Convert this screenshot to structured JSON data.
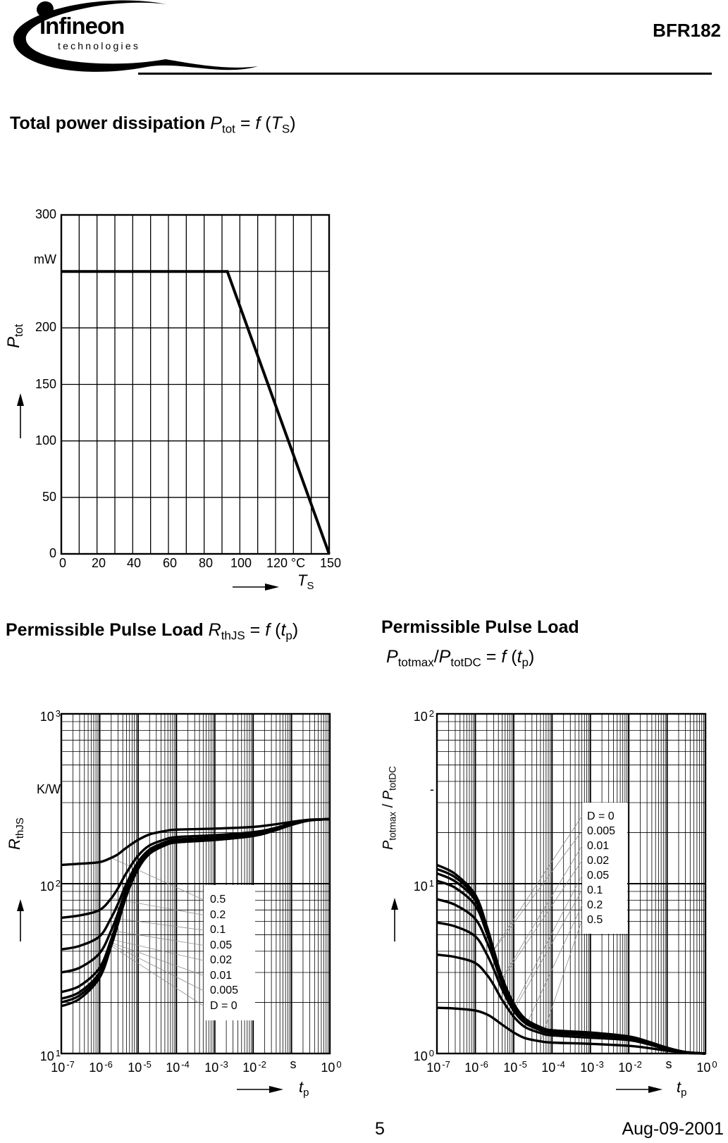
{
  "header": {
    "brand": "Infineon",
    "brand_sub": "technologies",
    "product": "BFR182"
  },
  "footer": {
    "page": "5",
    "date": "Aug-09-2001"
  },
  "headings": {
    "total_power": [
      {
        "t": "Total power dissipation ",
        "b": true
      },
      {
        "t": "P",
        "i": true
      },
      {
        "t": "tot",
        "sub": true
      },
      {
        "t": " = "
      },
      {
        "t": "f",
        "i": true
      },
      {
        "t": " ("
      },
      {
        "t": "T",
        "i": true
      },
      {
        "t": "S",
        "sub": true
      },
      {
        "t": ")"
      }
    ],
    "pulse_left": [
      {
        "t": "Permissible Pulse Load ",
        "b": true
      },
      {
        "t": "R",
        "i": true
      },
      {
        "t": "thJS",
        "sub": true
      },
      {
        "t": " = "
      },
      {
        "t": "f",
        "i": true
      },
      {
        "t": " ("
      },
      {
        "t": "t",
        "i": true
      },
      {
        "t": "p",
        "sub": true
      },
      {
        "t": ")"
      }
    ],
    "pulse_right_line1": [
      {
        "t": "Permissible Pulse Load",
        "b": true
      }
    ],
    "pulse_right_line2": [
      {
        "t": "P",
        "i": true
      },
      {
        "t": "totmax",
        "sub": true
      },
      {
        "t": "/"
      },
      {
        "t": "P",
        "i": true
      },
      {
        "t": "totDC",
        "sub": true
      },
      {
        "t": " = "
      },
      {
        "t": "f",
        "i": true
      },
      {
        "t": " ("
      },
      {
        "t": "t",
        "i": true
      },
      {
        "t": "p",
        "sub": true
      },
      {
        "t": ")"
      }
    ]
  },
  "chart_data": [
    {
      "type": "line",
      "title": "Total power dissipation Ptot = f (TS)",
      "xlabel": "TS",
      "ylabel": "Ptot",
      "x_unit": "°C",
      "y_unit": "mW",
      "xlim": [
        0,
        150
      ],
      "ylim": [
        0,
        300
      ],
      "x_grid_step": 10,
      "y_grid_step": 50,
      "grid": true,
      "x_ticks": [
        {
          "base": "0",
          "value": 0
        },
        {
          "base": "20",
          "value": 20
        },
        {
          "base": "40",
          "value": 40
        },
        {
          "base": "60",
          "value": 60
        },
        {
          "base": "80",
          "value": 80
        },
        {
          "base": "100",
          "value": 100
        },
        {
          "base": "120",
          "value": 120
        },
        {
          "base": "°C",
          "value": 132
        },
        {
          "base": "150",
          "value": 150
        }
      ],
      "y_ticks": [
        {
          "base": "300",
          "value": 300
        },
        {
          "base": "mW",
          "value": 260
        },
        {
          "base": "200",
          "value": 200
        },
        {
          "base": "150",
          "value": 150
        },
        {
          "base": "100",
          "value": 100
        },
        {
          "base": "50",
          "value": 50
        },
        {
          "base": "0",
          "value": 0
        }
      ],
      "ylabel_rich": [
        {
          "t": "P",
          "i": true
        },
        {
          "t": "tot",
          "sub": true
        }
      ],
      "xlabel_rich": [
        {
          "t": "T",
          "i": true
        },
        {
          "t": "S",
          "sub": true
        }
      ],
      "series": [
        {
          "name": "Ptot derating",
          "points": [
            [
              0,
              250
            ],
            [
              93,
              250
            ],
            [
              150,
              0
            ]
          ]
        }
      ]
    },
    {
      "type": "line",
      "title": "Permissible Pulse Load RthJS = f (tp)",
      "xlabel": "tp",
      "ylabel": "RthJS",
      "x_unit": "s",
      "y_unit": "K/W",
      "x_scale": "log",
      "y_scale": "log",
      "xlim": [
        1e-07,
        1
      ],
      "ylim": [
        10,
        1000
      ],
      "grid": true,
      "x_ticks": [
        {
          "base": "10",
          "exp": "-7",
          "log": -7
        },
        {
          "base": "10",
          "exp": "-6",
          "log": -6
        },
        {
          "base": "10",
          "exp": "-5",
          "log": -5
        },
        {
          "base": "10",
          "exp": "-4",
          "log": -4
        },
        {
          "base": "10",
          "exp": "-3",
          "log": -3
        },
        {
          "base": "10",
          "exp": "-2",
          "log": -2
        },
        {
          "base": "s",
          "log": -1
        },
        {
          "base": "10",
          "exp": "0",
          "log": 0
        }
      ],
      "y_ticks": [
        {
          "base": "10",
          "exp": "3",
          "log": 3
        },
        {
          "base": "K/W",
          "log": 2.55
        },
        {
          "base": "10",
          "exp": "2",
          "log": 2
        },
        {
          "base": "10",
          "exp": "1",
          "log": 1
        }
      ],
      "ylabel_rich": [
        {
          "t": "R",
          "i": true
        },
        {
          "t": "thJS",
          "sub": true
        }
      ],
      "xlabel_rich": [
        {
          "t": "t",
          "i": true
        },
        {
          "t": "p",
          "sub": true
        }
      ],
      "legend": [
        "0.5",
        "0.2",
        "0.1",
        "0.05",
        "0.02",
        "0.01",
        "0.005",
        "D = 0"
      ],
      "tp": [
        1e-07,
        3e-07,
        1e-06,
        2e-06,
        3e-06,
        5e-06,
        1e-05,
        2e-05,
        5e-05,
        0.0001,
        0.001,
        0.01,
        0.03,
        0.1,
        0.3,
        1
      ],
      "series": [
        {
          "name": "D = 0.5",
          "values": [
            129,
            131,
            134,
            142,
            149,
            163,
            181,
            195,
            204,
            208,
            211,
            216,
            222,
            231,
            238,
            240
          ]
        },
        {
          "name": "D = 0.2",
          "values": [
            63,
            65,
            70,
            82,
            94,
            116,
            146,
            168,
            182,
            188,
            193,
            201,
            210,
            226,
            237,
            240
          ]
        },
        {
          "name": "D = 0.1",
          "values": [
            41,
            43,
            49,
            63,
            76,
            100,
            134,
            159,
            175,
            182,
            187,
            196,
            207,
            224,
            236,
            240
          ]
        },
        {
          "name": "D = 0.05",
          "values": [
            30,
            32,
            39,
            53,
            67,
            93,
            128,
            154,
            172,
            178,
            184,
            193,
            205,
            223,
            236,
            240
          ]
        },
        {
          "name": "D = 0.02",
          "values": [
            23,
            25,
            32,
            47,
            62,
            88,
            124,
            152,
            169,
            176,
            182,
            192,
            204,
            222,
            236,
            240
          ]
        },
        {
          "name": "D = 0.01",
          "values": [
            21,
            23,
            30,
            45,
            60,
            87,
            123,
            151,
            169,
            176,
            182,
            192,
            203,
            222,
            236,
            240
          ]
        },
        {
          "name": "D = 0.005",
          "values": [
            20,
            22,
            29,
            44,
            59,
            86,
            123,
            150,
            168,
            175,
            181,
            191,
            203,
            222,
            236,
            240
          ]
        },
        {
          "name": "D = 0",
          "values": [
            19,
            21,
            28,
            43,
            58,
            85,
            122,
            150,
            168,
            175,
            181,
            191,
            203,
            222,
            236,
            240
          ]
        }
      ]
    },
    {
      "type": "line",
      "title": "Permissible Pulse Load Ptotmax/PtotDC = f (tp)",
      "xlabel": "tp",
      "ylabel": "Ptotmax / PtotDC",
      "x_unit": "s",
      "y_unit": "-",
      "x_scale": "log",
      "y_scale": "log",
      "xlim": [
        1e-07,
        1
      ],
      "ylim": [
        1,
        100
      ],
      "grid": true,
      "x_ticks": [
        {
          "base": "10",
          "exp": "-7",
          "log": -7
        },
        {
          "base": "10",
          "exp": "-6",
          "log": -6
        },
        {
          "base": "10",
          "exp": "-5",
          "log": -5
        },
        {
          "base": "10",
          "exp": "-4",
          "log": -4
        },
        {
          "base": "10",
          "exp": "-3",
          "log": -3
        },
        {
          "base": "10",
          "exp": "-2",
          "log": -2
        },
        {
          "base": "s",
          "log": -1
        },
        {
          "base": "10",
          "exp": "0",
          "log": 0
        }
      ],
      "y_ticks": [
        {
          "base": "10",
          "exp": "2",
          "log": 2
        },
        {
          "base": "-",
          "log": 1.55
        },
        {
          "base": "10",
          "exp": "1",
          "log": 1
        },
        {
          "base": "10",
          "exp": "0",
          "log": 0
        }
      ],
      "ylabel_rich": [
        {
          "t": "P",
          "i": true
        },
        {
          "t": "totmax",
          "sub": true
        },
        {
          "t": " / "
        },
        {
          "t": "P",
          "i": true
        },
        {
          "t": "totDC",
          "sub": true
        }
      ],
      "xlabel_rich": [
        {
          "t": "t",
          "i": true
        },
        {
          "t": "p",
          "sub": true
        }
      ],
      "legend": [
        "D = 0",
        "0.005",
        "0.01",
        "0.02",
        "0.05",
        "0.1",
        "0.2",
        "0.5"
      ],
      "tp": [
        1e-07,
        3e-07,
        1e-06,
        2e-06,
        3e-06,
        5e-06,
        1e-05,
        2e-05,
        5e-05,
        0.0001,
        0.001,
        0.01,
        0.03,
        0.1,
        0.3,
        1
      ],
      "series": [
        {
          "name": "D = 0",
          "values": [
            12.9,
            11.4,
            8.6,
            5.6,
            4.1,
            2.8,
            1.97,
            1.6,
            1.43,
            1.37,
            1.33,
            1.26,
            1.18,
            1.08,
            1.02,
            1.0
          ]
        },
        {
          "name": "D = 0.005",
          "values": [
            12.2,
            10.9,
            8.3,
            5.5,
            4.05,
            2.8,
            1.96,
            1.6,
            1.43,
            1.37,
            1.32,
            1.26,
            1.18,
            1.08,
            1.02,
            1.0
          ]
        },
        {
          "name": "D = 0.01",
          "values": [
            11.5,
            10.3,
            8.0,
            5.35,
            4.0,
            2.77,
            1.95,
            1.59,
            1.42,
            1.37,
            1.32,
            1.25,
            1.18,
            1.08,
            1.02,
            1.0
          ]
        },
        {
          "name": "D = 0.02",
          "values": [
            10.4,
            9.45,
            7.45,
            5.1,
            3.9,
            2.72,
            1.93,
            1.58,
            1.42,
            1.36,
            1.32,
            1.25,
            1.18,
            1.08,
            1.02,
            1.0
          ]
        },
        {
          "name": "D = 0.05",
          "values": [
            8.1,
            7.5,
            6.2,
            4.55,
            3.6,
            2.59,
            1.88,
            1.55,
            1.4,
            1.35,
            1.3,
            1.24,
            1.17,
            1.08,
            1.02,
            1.0
          ]
        },
        {
          "name": "D = 0.1",
          "values": [
            5.9,
            5.6,
            4.9,
            3.83,
            3.15,
            2.39,
            1.79,
            1.51,
            1.37,
            1.32,
            1.28,
            1.23,
            1.16,
            1.07,
            1.02,
            1.0
          ]
        },
        {
          "name": "D = 0.2",
          "values": [
            3.82,
            3.7,
            3.41,
            2.91,
            2.54,
            2.07,
            1.65,
            1.43,
            1.32,
            1.28,
            1.24,
            1.2,
            1.14,
            1.06,
            1.01,
            1.0
          ]
        },
        {
          "name": "D = 0.5",
          "values": [
            1.86,
            1.84,
            1.79,
            1.7,
            1.61,
            1.48,
            1.33,
            1.23,
            1.18,
            1.16,
            1.14,
            1.11,
            1.08,
            1.04,
            1.01,
            1.0
          ]
        }
      ]
    }
  ]
}
